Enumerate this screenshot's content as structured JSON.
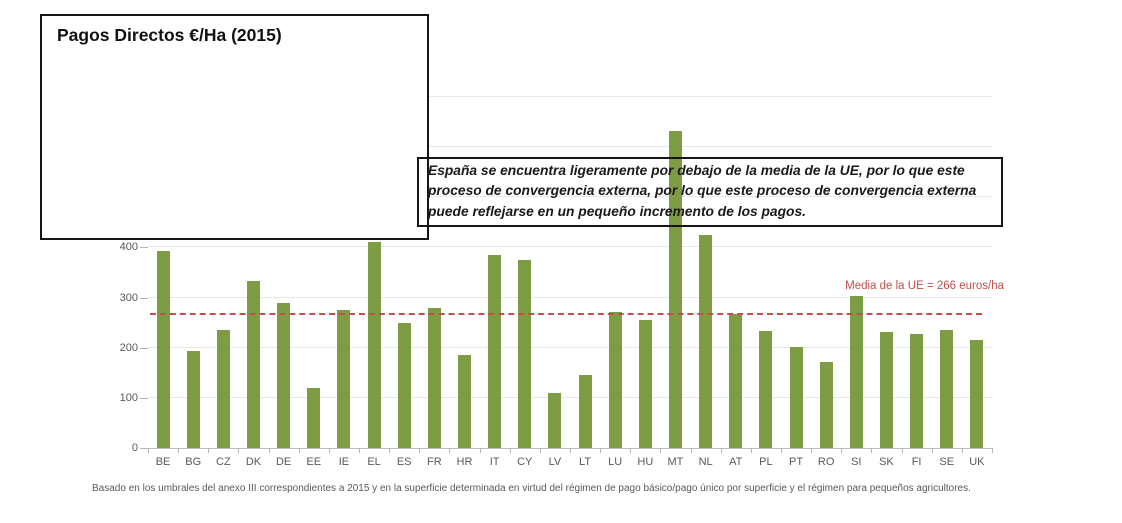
{
  "title_box": {
    "title": "Pagos Directos €/Ha (2015)"
  },
  "annotation_box": {
    "text": "España se encuentra ligeramente por debajo de la media de la UE, por lo que este proceso de convergencia externa, por lo que este proceso de convergencia externa puede reflejarse en un pequeño incremento de los pagos."
  },
  "footnote": "Basado en los umbrales del anexo III correspondientes a 2015 y en la superficie determinada en virtud del régimen de pago básico/pago único por superficie y el régimen para pequeños agricultores.",
  "chart_data": {
    "type": "bar",
    "title": "Pagos Directos €/Ha (2015)",
    "xlabel": "",
    "ylabel": "",
    "categories": [
      "BE",
      "BG",
      "CZ",
      "DK",
      "DE",
      "EE",
      "IE",
      "EL",
      "ES",
      "FR",
      "HR",
      "IT",
      "CY",
      "LV",
      "LT",
      "LU",
      "HU",
      "MT",
      "NL",
      "AT",
      "PL",
      "PT",
      "RO",
      "SI",
      "SK",
      "FI",
      "SE",
      "UK"
    ],
    "values": [
      392,
      194,
      236,
      334,
      290,
      119,
      275,
      411,
      249,
      279,
      185,
      384,
      374,
      109,
      146,
      272,
      255,
      633,
      425,
      268,
      233,
      202,
      171,
      303,
      231,
      227,
      235,
      216
    ],
    "ylim": [
      0,
      700
    ],
    "gridlines": [
      100,
      200,
      300,
      400,
      500,
      600,
      700
    ],
    "yticks_visible": [
      0,
      100,
      200,
      300,
      400
    ],
    "grid": true,
    "legend": "none",
    "reference_line": {
      "value": 266,
      "label": "Media de la UE = 266 euros/ha"
    },
    "colors": {
      "bar": "#7d9c43",
      "reference": "#c0504d",
      "axis_text": "#595959",
      "grid": "#e7e7e7"
    }
  }
}
